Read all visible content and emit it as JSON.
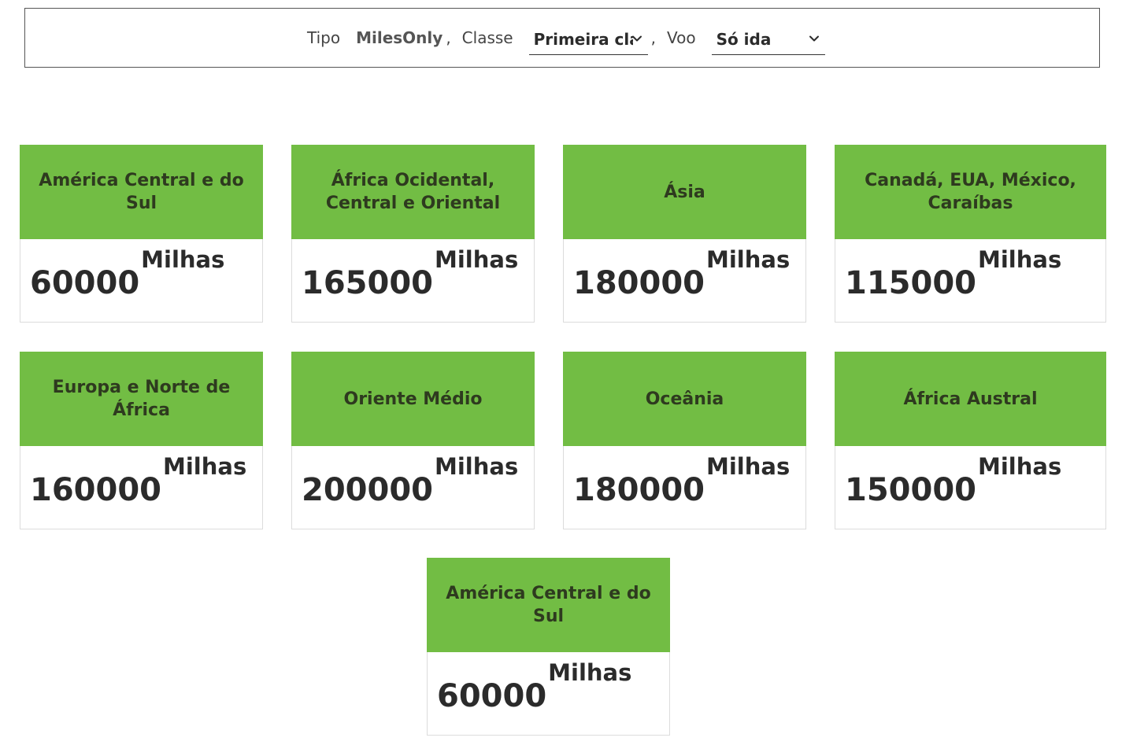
{
  "filters": {
    "tipo": {
      "label": "Tipo",
      "value": "MilesOnly"
    },
    "classe": {
      "label": "Classe",
      "selected": "Primeira classe"
    },
    "voo": {
      "label": "Voo",
      "selected": "Só ida"
    },
    "separator": ","
  },
  "unit": "Milhas",
  "colors": {
    "card_header": "#72bd44",
    "text": "#2b2b2b"
  },
  "regions": [
    {
      "name": "América Central e do Sul",
      "miles": "60000"
    },
    {
      "name": "África Ocidental, Central e Oriental",
      "miles": "165000"
    },
    {
      "name": "Ásia",
      "miles": "180000"
    },
    {
      "name": "Canadá, EUA, México, Caraíbas",
      "miles": "115000"
    },
    {
      "name": "Europa e Norte de África",
      "miles": "160000"
    },
    {
      "name": "Oriente Médio",
      "miles": "200000"
    },
    {
      "name": "Oceânia",
      "miles": "180000"
    },
    {
      "name": "África Austral",
      "miles": "150000"
    },
    {
      "name": "América Central e do Sul",
      "miles": "60000"
    }
  ],
  "icons": {
    "dropdown": "chevron-down-icon"
  }
}
